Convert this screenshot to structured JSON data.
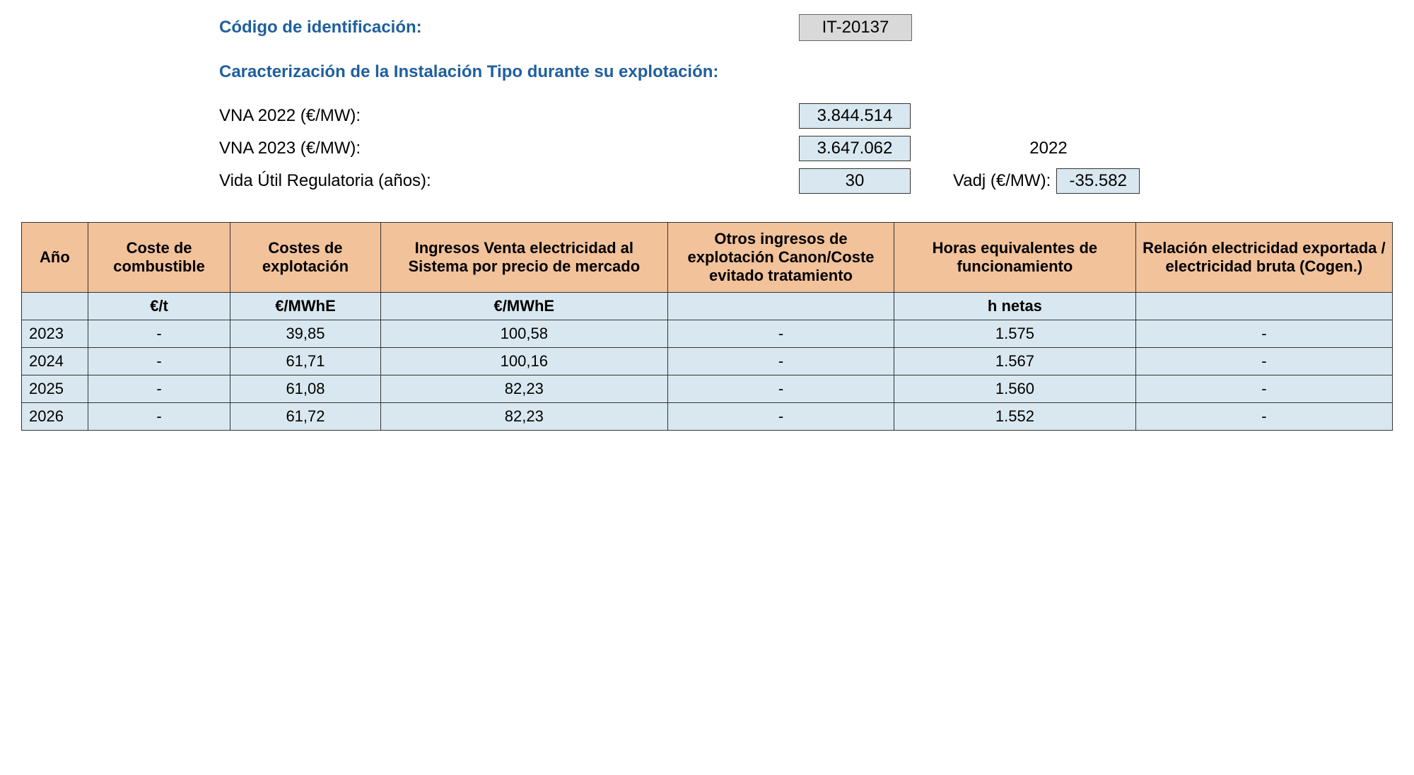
{
  "header": {
    "id_label": "Código de identificación:",
    "id_value": "IT-20137",
    "subtitle": "Caracterización de la Instalación Tipo durante su explotación:"
  },
  "params": {
    "vna2022_label": "VNA 2022 (€/MW):",
    "vna2022_value": "3.844.514",
    "vna2023_label": "VNA 2023 (€/MW):",
    "vna2023_value": "3.647.062",
    "life_label": "Vida Útil Regulatoria (años):",
    "life_value": "30",
    "year_extra": "2022",
    "vadj_label": "Vadj (€/MW):",
    "vadj_value": "-35.582"
  },
  "table": {
    "headers": {
      "year": "Año",
      "fuel": "Coste de combustible",
      "opex": "Costes de explotación",
      "income": "Ingresos Venta electricidad al Sistema por precio de mercado",
      "other": "Otros ingresos de explotación Canon/Coste evitado tratamiento",
      "hours": "Horas equivalentes de funcionamiento",
      "ratio": "Relación electricidad exportada / electricidad bruta (Cogen.)"
    },
    "units": {
      "year": "",
      "fuel": "€/t",
      "opex": "€/MWhE",
      "income": "€/MWhE",
      "other": "",
      "hours": "h netas",
      "ratio": ""
    },
    "rows": [
      {
        "year": "2023",
        "fuel": "-",
        "opex": "39,85",
        "income": "100,58",
        "other": "-",
        "hours": "1.575",
        "ratio": "-"
      },
      {
        "year": "2024",
        "fuel": "-",
        "opex": "61,71",
        "income": "100,16",
        "other": "-",
        "hours": "1.567",
        "ratio": "-"
      },
      {
        "year": "2025",
        "fuel": "-",
        "opex": "61,08",
        "income": "82,23",
        "other": "-",
        "hours": "1.560",
        "ratio": "-"
      },
      {
        "year": "2026",
        "fuel": "-",
        "opex": "61,72",
        "income": "82,23",
        "other": "-",
        "hours": "1.552",
        "ratio": "-"
      }
    ]
  },
  "styles": {
    "header_color": "#1f5f9e",
    "th_bg": "#f2c29b",
    "td_bg": "#d9e8f0",
    "id_bg": "#d9d9d9",
    "border_color": "#333333",
    "font_family": "Arial"
  }
}
